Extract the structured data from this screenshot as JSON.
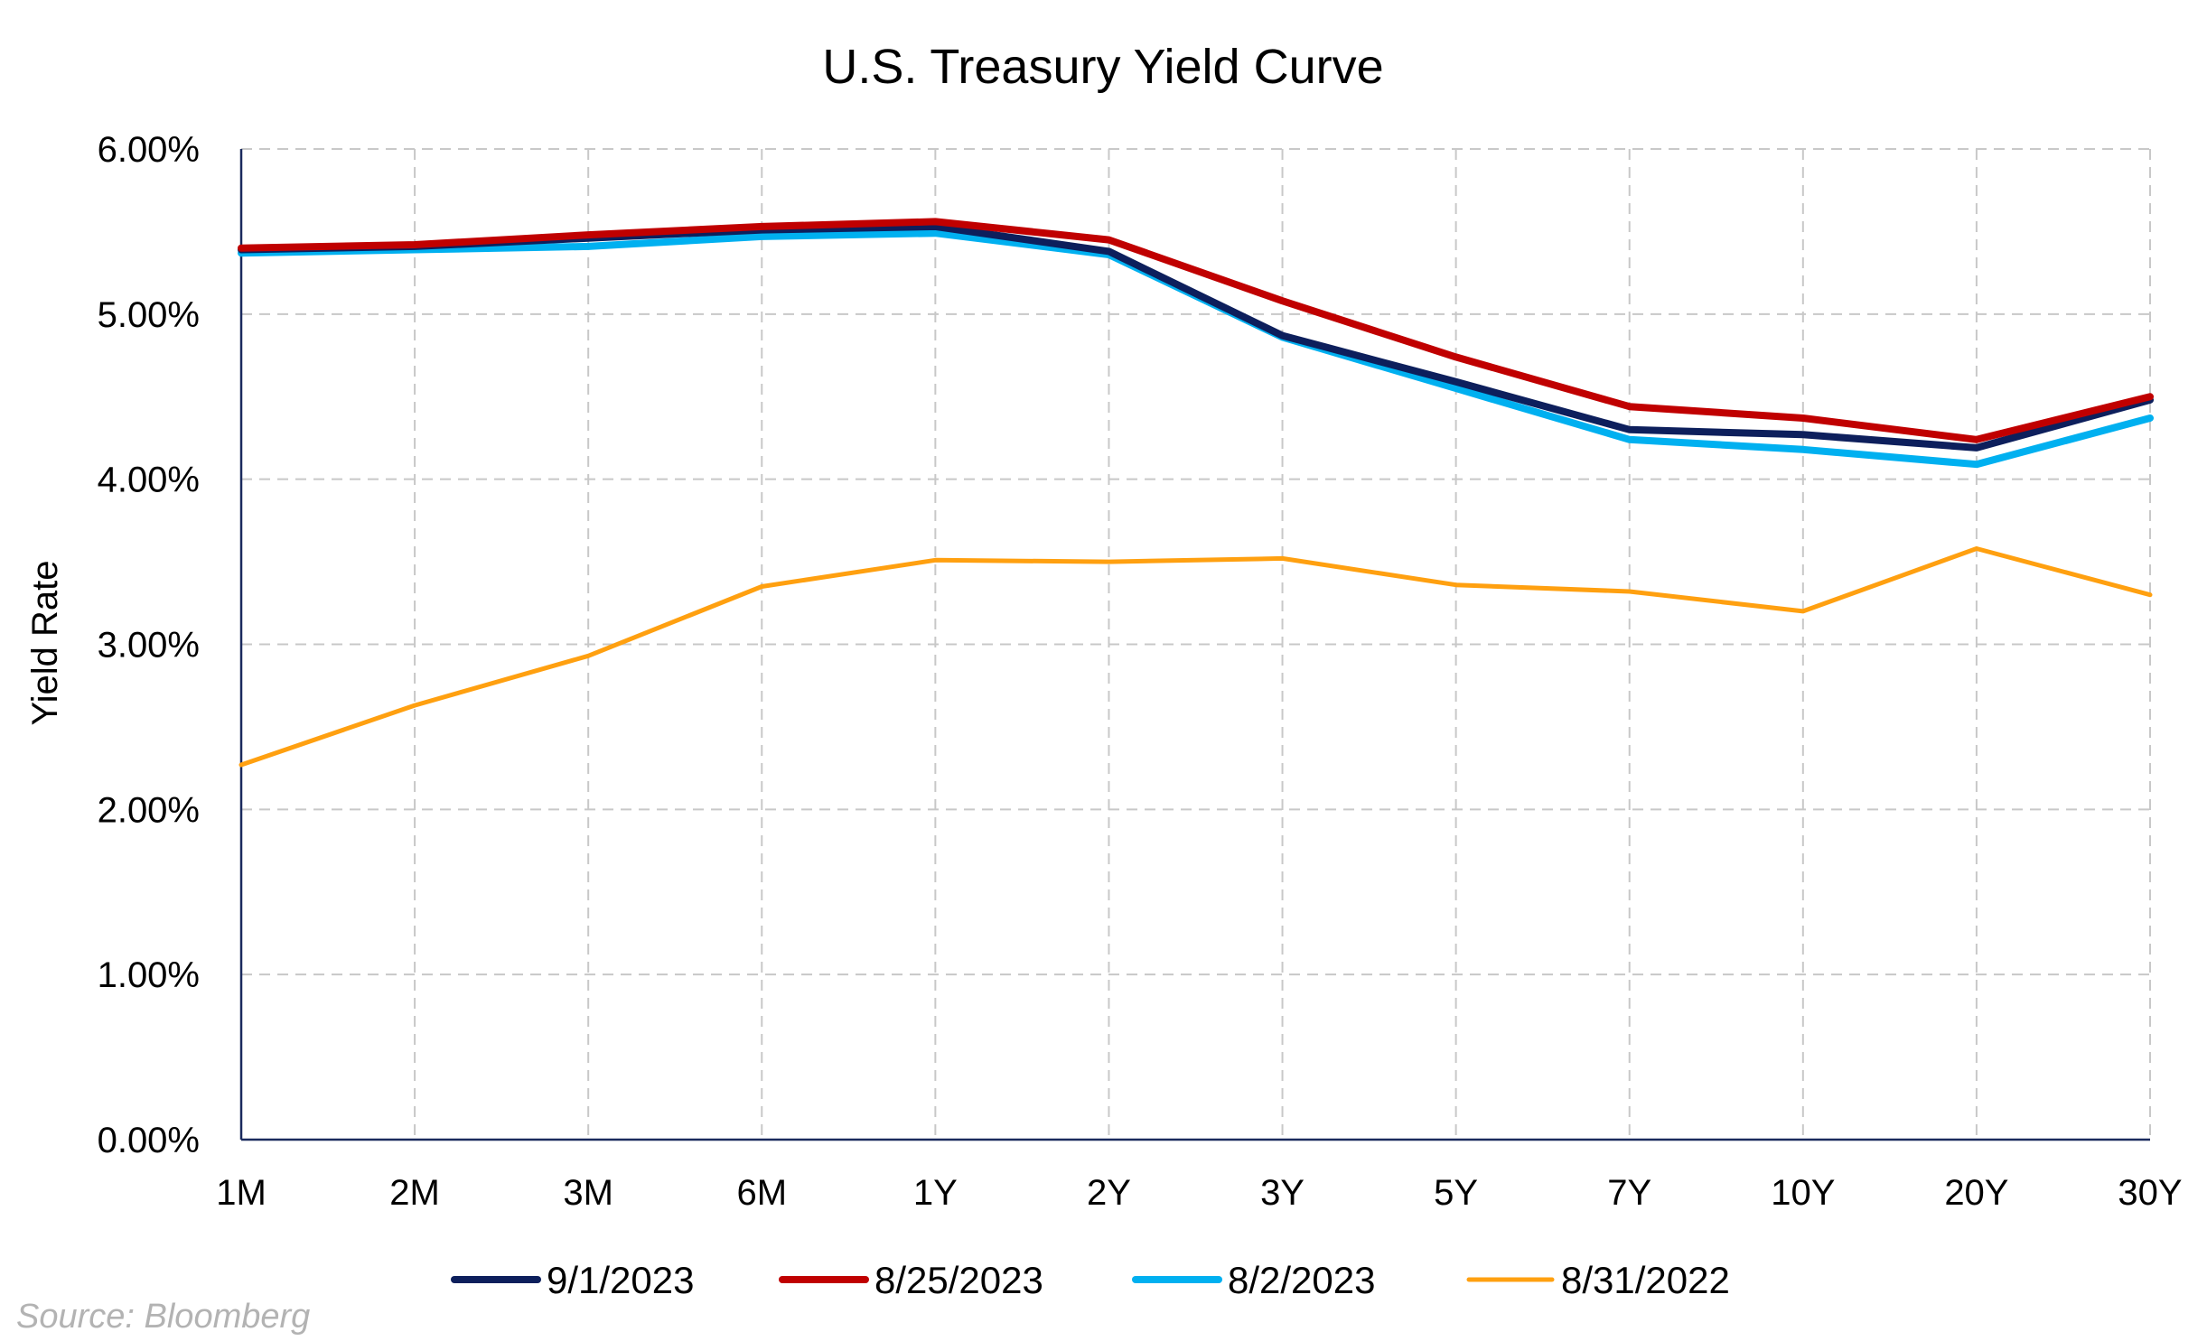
{
  "chart_data": {
    "type": "line",
    "title": "U.S. Treasury Yield Curve",
    "ylabel": "Yield Rate",
    "xlabel": "",
    "categories": [
      "1M",
      "2M",
      "3M",
      "6M",
      "1Y",
      "2Y",
      "3Y",
      "5Y",
      "7Y",
      "10Y",
      "20Y",
      "30Y"
    ],
    "ylim": [
      0,
      6
    ],
    "yticks": [
      "0.00%",
      "1.00%",
      "2.00%",
      "3.00%",
      "4.00%",
      "5.00%",
      "6.00%"
    ],
    "ytick_values": [
      0,
      1,
      2,
      3,
      4,
      5,
      6
    ],
    "grid": true,
    "legend_position": "bottom",
    "series": [
      {
        "name": "9/1/2023",
        "color": "#0d1f5c",
        "values": [
          5.39,
          5.41,
          5.46,
          5.51,
          5.53,
          5.38,
          4.87,
          4.59,
          4.3,
          4.27,
          4.19,
          4.48
        ]
      },
      {
        "name": "8/25/2023",
        "color": "#c00000",
        "values": [
          5.4,
          5.42,
          5.48,
          5.53,
          5.56,
          5.45,
          5.08,
          4.74,
          4.44,
          4.37,
          4.24,
          4.5
        ]
      },
      {
        "name": "8/2/2023",
        "color": "#00b0f0",
        "values": [
          5.37,
          5.39,
          5.41,
          5.47,
          5.49,
          5.36,
          4.86,
          4.55,
          4.24,
          4.18,
          4.09,
          4.37
        ]
      },
      {
        "name": "8/31/2022",
        "color": "#ffa010",
        "values": [
          2.27,
          2.63,
          2.93,
          3.35,
          3.51,
          3.5,
          3.52,
          3.36,
          3.32,
          3.2,
          3.58,
          3.3
        ]
      }
    ]
  },
  "source": "Source: Bloomberg"
}
